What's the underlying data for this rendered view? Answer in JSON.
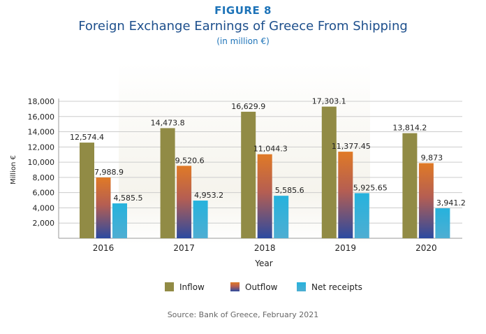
{
  "header": {
    "figure_label": "FIGURE 8",
    "title": "Foreign Exchange Earnings of Greece From Shipping",
    "subtitle": "(in million €)"
  },
  "footer": {
    "source": "Source: Bank of Greece, February 2021"
  },
  "colors": {
    "inflow": "#918b45",
    "outflow_top": "#e07a26",
    "outflow_bottom": "#2b4aa0",
    "net_top": "#26b2dd",
    "net_bottom": "#4eaed2",
    "grid": "#cccccc",
    "title_blue": "#1d4f8c"
  },
  "chart_data": {
    "type": "bar",
    "categories": [
      "2016",
      "2017",
      "2018",
      "2019",
      "2020"
    ],
    "series": [
      {
        "name": "Inflow",
        "values": [
          12574.4,
          14473.8,
          16629.9,
          17303.1,
          13814.2
        ],
        "labels": [
          "12,574.4",
          "14,473.8",
          "16,629.9",
          "17,303.1",
          "13,814.2"
        ]
      },
      {
        "name": "Outflow",
        "values": [
          7988.9,
          9520.6,
          11044.3,
          11377.45,
          9873
        ],
        "labels": [
          "7,988.9",
          "9,520.6",
          "11,044.3",
          "11,377.45",
          "9,873"
        ]
      },
      {
        "name": "Net receipts",
        "values": [
          4585.5,
          4953.2,
          5585.6,
          5925.65,
          3941.2
        ],
        "labels": [
          "4,585.5",
          "4,953.2",
          "5,585.6",
          "5,925.65",
          "3,941.2"
        ]
      }
    ],
    "yticks": [
      2000,
      4000,
      6000,
      8000,
      10000,
      12000,
      14000,
      16000,
      18000
    ],
    "ytick_labels": [
      "2,000",
      "4,000",
      "6,000",
      "8,000",
      "10,000",
      "12,000",
      "14,000",
      "16,000",
      "18,000"
    ],
    "ylim": [
      0,
      18000
    ],
    "xlabel": "Year",
    "ylabel": "Million €",
    "grid": true,
    "legend": "bottom"
  }
}
